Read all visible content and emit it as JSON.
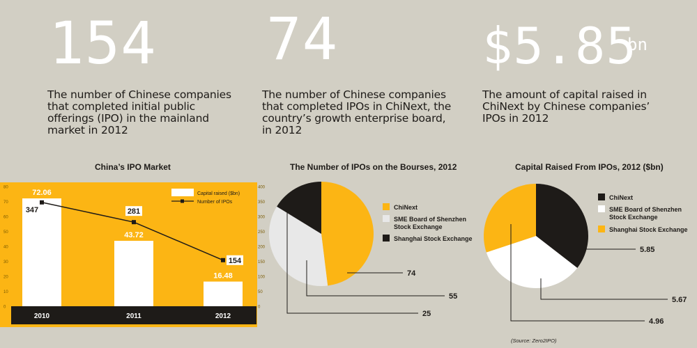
{
  "stats": [
    {
      "value": "154",
      "unit": "",
      "description": "The number of Chinese companies\nthat completed initial public\nofferings (IPO) in the mainland\nmarket in 2012"
    },
    {
      "value": "74",
      "unit": "",
      "description": "The number of Chinese companies\nthat completed IPOs in ChiNext, the\ncountry’s growth enterprise board,\nin 2012"
    },
    {
      "value": "$5.85",
      "unit": "bn",
      "description": "The amount of capital raised in\nChiNext by Chinese companies’\nIPOs in 2012"
    }
  ],
  "source": "(Source: Zero2IPO)",
  "colors": {
    "background": "#d2cfc4",
    "yellow": "#fcb514",
    "dark": "#1e1b18",
    "light": "#e8e8e8",
    "white": "#ffffff"
  },
  "chart_data": [
    {
      "type": "bar",
      "title": "China’s IPO Market",
      "categories": [
        "2010",
        "2011",
        "2012"
      ],
      "series": [
        {
          "name": "Capital raised ($bn)",
          "kind": "bar",
          "axis": "left",
          "values": [
            72.06,
            43.72,
            16.48
          ],
          "labels": [
            "72.06",
            "43.72",
            "16.48"
          ]
        },
        {
          "name": "Number of IPOs",
          "kind": "line",
          "axis": "right",
          "values": [
            347,
            281,
            154
          ],
          "labels": [
            "347",
            "281",
            "154"
          ]
        }
      ],
      "ylim": [
        0,
        80
      ],
      "y2lim": [
        0,
        400
      ],
      "yticks": [
        "0",
        "10",
        "20",
        "30",
        "40",
        "50",
        "60",
        "70",
        "80"
      ],
      "y2ticks": [
        "0",
        "50",
        "100",
        "150",
        "200",
        "250",
        "300",
        "350",
        "400"
      ],
      "legend": "top-right",
      "grid": false
    },
    {
      "type": "pie",
      "title": "The Number of IPOs on the Bourses, 2012",
      "legend": "right",
      "slices": [
        {
          "label": "ChiNext",
          "value": 74,
          "value_label": "74",
          "color": "#fcb514"
        },
        {
          "label": "SME Board of Shenzhen\nStock Exchange",
          "value": 55,
          "value_label": "55",
          "color": "#e8e8e8"
        },
        {
          "label": "Shanghai Stock Exchange",
          "value": 25,
          "value_label": "25",
          "color": "#1e1b18"
        }
      ]
    },
    {
      "type": "pie",
      "title": "Capital Raised From IPOs, 2012 ($bn)",
      "legend": "top-right",
      "slices": [
        {
          "label": "ChiNext",
          "value": 5.85,
          "value_label": "5.85",
          "color": "#1e1b18"
        },
        {
          "label": "SME Board of Shenzhen\nStock Exchange",
          "value": 5.67,
          "value_label": "5.67",
          "color": "#ffffff"
        },
        {
          "label": "Shanghai Stock Exchange",
          "value": 4.96,
          "value_label": "4.96",
          "color": "#fcb514"
        }
      ]
    }
  ]
}
